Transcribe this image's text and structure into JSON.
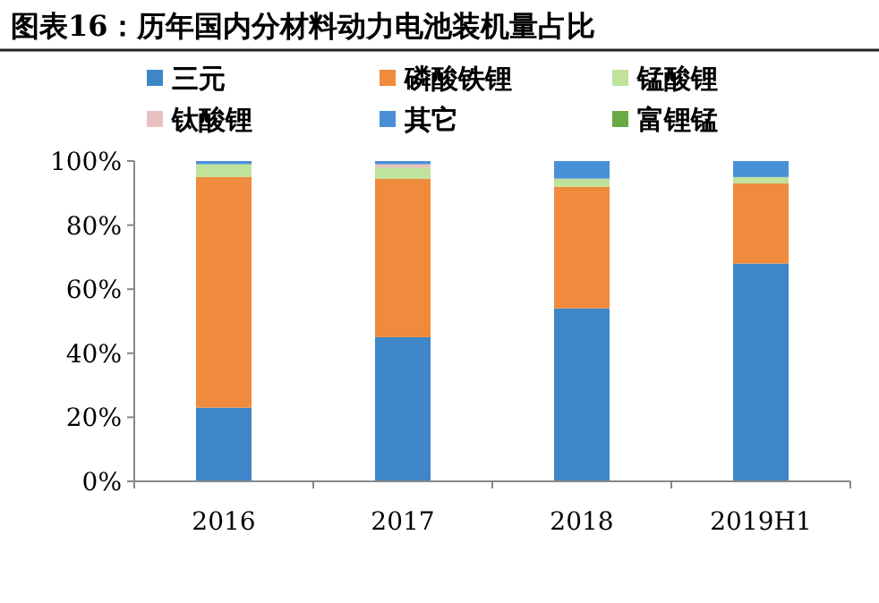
{
  "chart_data": {
    "type": "bar",
    "title": "图表16：历年国内分材料动力电池装机量占比",
    "categories": [
      "2016",
      "2017",
      "2018",
      "2019H1"
    ],
    "stacked": true,
    "legend": "top",
    "grid": false,
    "ylim": [
      0,
      100
    ],
    "yticks": [
      {
        "value": 0,
        "label": "0%"
      },
      {
        "value": 20,
        "label": "20%"
      },
      {
        "value": 40,
        "label": "40%"
      },
      {
        "value": 60,
        "label": "60%"
      },
      {
        "value": 80,
        "label": "80%"
      },
      {
        "value": 100,
        "label": "100%"
      }
    ],
    "series": [
      {
        "name": "三元",
        "color": "#3f86c8",
        "values": [
          23,
          45,
          54,
          68
        ]
      },
      {
        "name": "磷酸铁锂",
        "color": "#f08a3c",
        "values": [
          72,
          49.5,
          38,
          25
        ]
      },
      {
        "name": "锰酸锂",
        "color": "#bfe39a",
        "values": [
          4,
          3.5,
          2.5,
          2
        ]
      },
      {
        "name": "钛酸锂",
        "color": "#e8c0c0",
        "values": [
          0,
          1,
          0,
          0
        ]
      },
      {
        "name": "其它",
        "color": "#4a90d6",
        "values": [
          1,
          1,
          5.5,
          5
        ]
      },
      {
        "name": "富锂锰",
        "color": "#6aaa45",
        "values": [
          0,
          0,
          0,
          0
        ]
      }
    ]
  }
}
